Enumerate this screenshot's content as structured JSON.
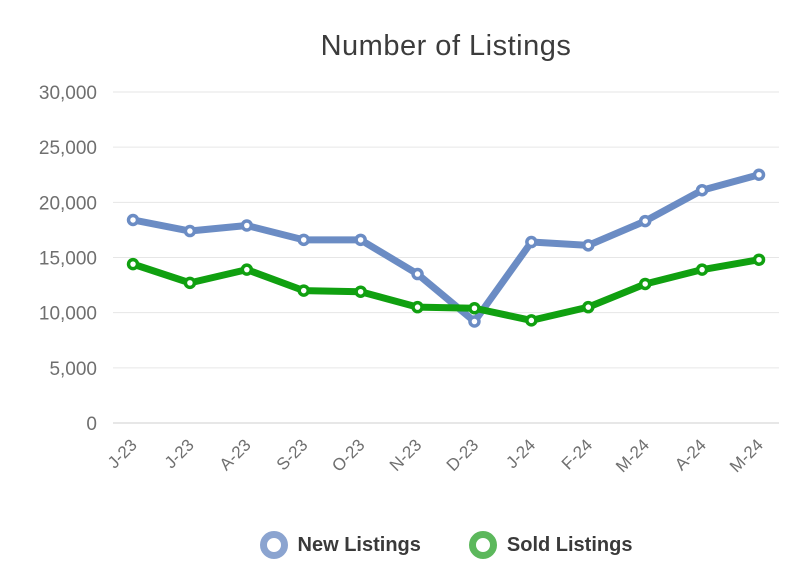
{
  "title": "Number of Listings",
  "colors": {
    "background": "#ffffff",
    "title_text": "#3c3c3c",
    "axis_label_text": "#6f6f6f",
    "gridline": "#e6e6e6",
    "baseline": "#cfcfcf",
    "new_listings_line": "#6b8cc4",
    "new_listings_legend": "#8ba4d0",
    "sold_listings_line": "#10a010",
    "sold_listings_legend": "#5cb85c",
    "marker_fill": "#ffffff",
    "legend_text": "#3a3a3a"
  },
  "chart_data": {
    "type": "line",
    "title": "Number of Listings",
    "xlabel": "",
    "ylabel": "",
    "categories": [
      "J-23",
      "J-23",
      "A-23",
      "S-23",
      "O-23",
      "N-23",
      "D-23",
      "J-24",
      "F-24",
      "M-24",
      "A-24",
      "M-24"
    ],
    "series": [
      {
        "name": "New Listings",
        "color": "#6b8cc4",
        "legend_color": "#8ba4d0",
        "values": [
          18400,
          17400,
          17900,
          16600,
          16600,
          13500,
          9200,
          16400,
          16100,
          18300,
          21100,
          22500
        ]
      },
      {
        "name": "Sold Listings",
        "color": "#10a010",
        "legend_color": "#5cb85c",
        "values": [
          14400,
          12700,
          13900,
          12000,
          11900,
          10500,
          10400,
          9300,
          10500,
          12600,
          13900,
          14800
        ]
      }
    ],
    "ylim": [
      0,
      30000
    ],
    "ytick_interval": 5000,
    "ytick_labels": [
      "0",
      "5,000",
      "10,000",
      "15,000",
      "20,000",
      "25,000",
      "30,000"
    ],
    "grid": true,
    "legend_position": "bottom",
    "x_label_rotation_deg": -45
  }
}
